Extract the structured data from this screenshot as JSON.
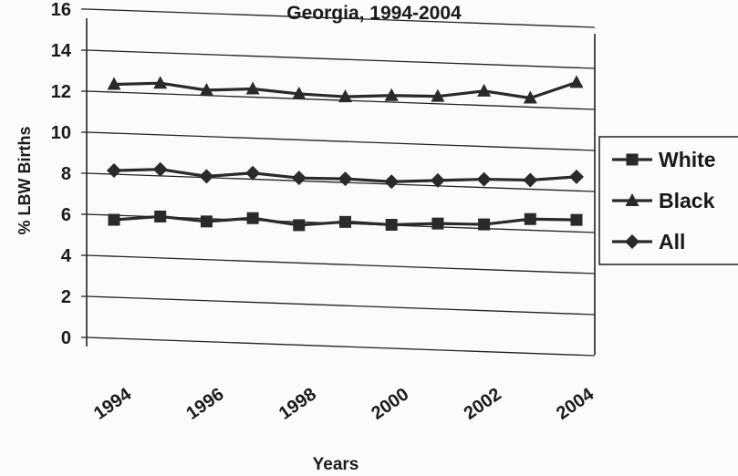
{
  "chart_data": {
    "type": "line",
    "title": "Georgia, 1994-2004",
    "xlabel": "Years",
    "ylabel": "% LBW Births",
    "x": [
      1994,
      1995,
      1996,
      1997,
      1998,
      1999,
      2000,
      2001,
      2002,
      2003,
      2004
    ],
    "x_tick_labels": [
      "1994",
      "1996",
      "1998",
      "2000",
      "2002",
      "2004"
    ],
    "y_ticks": [
      0,
      2,
      4,
      6,
      8,
      10,
      12,
      14,
      16
    ],
    "ylim": [
      0,
      16
    ],
    "grid": true,
    "legend_position": "right",
    "series": [
      {
        "name": "White",
        "marker": "square",
        "values": [
          6.2,
          6.4,
          6.2,
          6.4,
          6.1,
          6.3,
          6.2,
          6.3,
          6.3,
          6.6,
          6.6
        ]
      },
      {
        "name": "Black",
        "marker": "triangle",
        "values": [
          12.8,
          12.9,
          12.6,
          12.7,
          12.5,
          12.4,
          12.5,
          12.5,
          12.8,
          12.5,
          13.3
        ]
      },
      {
        "name": "All",
        "marker": "diamond",
        "values": [
          8.6,
          8.7,
          8.4,
          8.6,
          8.4,
          8.4,
          8.3,
          8.4,
          8.5,
          8.5,
          8.7
        ]
      }
    ]
  }
}
